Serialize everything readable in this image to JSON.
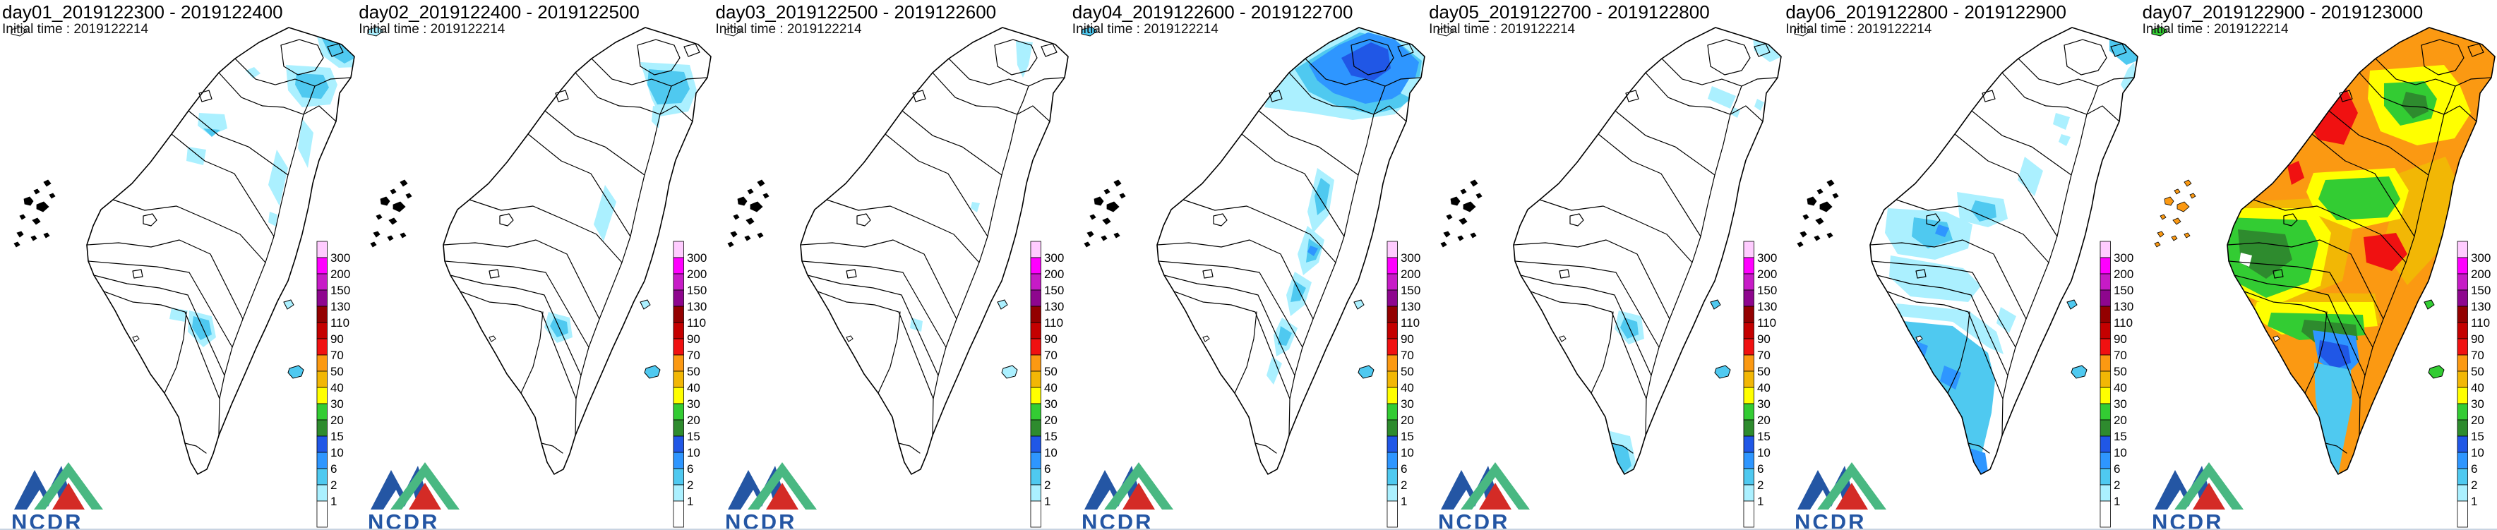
{
  "panels": [
    {
      "title": "day01_2019122300 - 2019122400",
      "initial_time": "Initial time : 2019122214"
    },
    {
      "title": "day02_2019122400 - 2019122500",
      "initial_time": "Initial time : 2019122214"
    },
    {
      "title": "day03_2019122500 - 2019122600",
      "initial_time": "Initial time : 2019122214"
    },
    {
      "title": "day04_2019122600 - 2019122700",
      "initial_time": "Initial time : 2019122214"
    },
    {
      "title": "day05_2019122700 - 2019122800",
      "initial_time": "Initial time : 2019122214"
    },
    {
      "title": "day06_2019122800 - 2019122900",
      "initial_time": "Initial time : 2019122214"
    },
    {
      "title": "day07_2019122900 - 2019123000",
      "initial_time": "Initial time : 2019122214"
    }
  ],
  "legend": {
    "labels_top_to_bottom": [
      "300",
      "200",
      "150",
      "130",
      "110",
      "90",
      "70",
      "50",
      "40",
      "30",
      "20",
      "15",
      "10",
      "6",
      "2",
      "1"
    ],
    "segment_colors_top_to_bottom": [
      "#FFCCFF",
      "#FF00FF",
      "#C71BC7",
      "#8E068E",
      "#930000",
      "#C40000",
      "#F01111",
      "#FB9912",
      "#F2B705",
      "#FFFF00",
      "#33CC33",
      "#2E8B2E",
      "#2057E6",
      "#2E96FF",
      "#4FC9F0",
      "#ABF0FF",
      "#FFFFFF"
    ],
    "level_colors": {
      "0": "#FFFFFF",
      "1": "#ABF0FF",
      "2": "#4FC9F0",
      "6": "#2E96FF",
      "10": "#2057E6",
      "15": "#2E8B2E",
      "20": "#33CC33",
      "30": "#FFFF00",
      "40": "#F2B705",
      "50": "#FB9912",
      "70": "#F01111",
      "90": "#C40000",
      "110": "#930000",
      "130": "#8E068E",
      "150": "#C71BC7",
      "200": "#FF00FF",
      "300": "#FFCCFF"
    }
  },
  "logo": {
    "text": "NCDR",
    "blue": "#2456A4",
    "green": "#49B882",
    "red": "#D42B26"
  }
}
